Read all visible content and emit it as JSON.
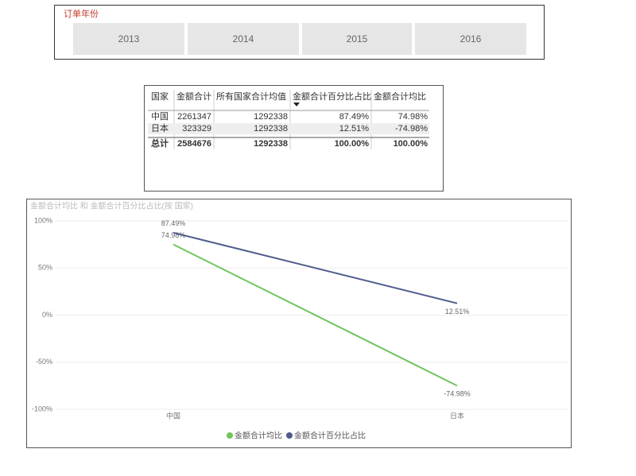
{
  "slicer": {
    "title": "订单年份",
    "items": [
      "2013",
      "2014",
      "2015",
      "2016"
    ]
  },
  "table": {
    "columns": [
      "国家",
      "金额合计",
      "所有国家合计均值",
      "金额合计百分比占比",
      "金额合计均比"
    ],
    "rows": [
      [
        "中国",
        "2261347",
        "1292338",
        "87.49%",
        "74.98%"
      ],
      [
        "日本",
        "323329",
        "1292338",
        "12.51%",
        "-74.98%"
      ]
    ],
    "total": [
      "总计",
      "2584676",
      "1292338",
      "100.00%",
      "100.00%"
    ]
  },
  "chart_data": {
    "type": "line",
    "title": "金额合计均比 和 金额合计百分比占比(按 国家)",
    "categories": [
      "中国",
      "日本"
    ],
    "series": [
      {
        "name": "金额合计均比",
        "color": "#72c35a",
        "values": [
          74.98,
          -74.98
        ],
        "value_labels": [
          "74.98%",
          "-74.98%"
        ]
      },
      {
        "name": "金额合计百分比占比",
        "color": "#4f5b8d",
        "values": [
          87.49,
          12.51
        ],
        "value_labels": [
          "87.49%",
          "12.51%"
        ]
      }
    ],
    "ylim": [
      -100,
      100
    ],
    "yticks": [
      {
        "value": 100,
        "label": "100%"
      },
      {
        "value": 50,
        "label": "50%"
      },
      {
        "value": 0,
        "label": "0%"
      },
      {
        "value": -50,
        "label": "-50%"
      },
      {
        "value": -100,
        "label": "-100%"
      }
    ],
    "grid": true,
    "legend": "bottom"
  }
}
